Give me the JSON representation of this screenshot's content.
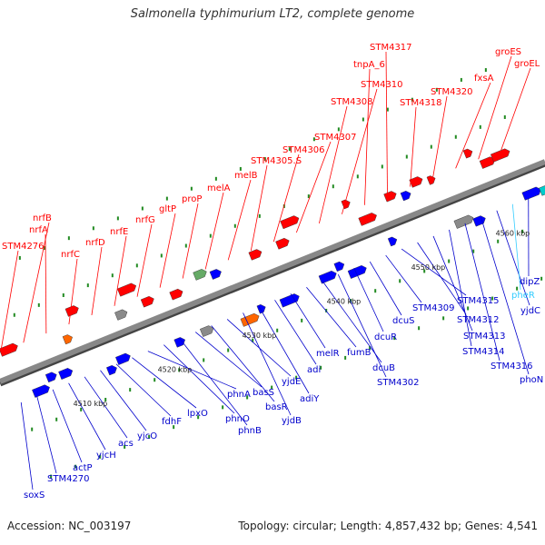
{
  "title": "Salmonella typhimurium LT2, complete genome",
  "footer": {
    "accession": "Accession: NC_003197",
    "summary": "Topology: circular; Length: 4,857,432 bp; Genes: 4,541"
  },
  "colors": {
    "forward_gene": "#ff0000",
    "reverse_gene": "#0000ff",
    "backbone": "#888888",
    "tick": "#228b22",
    "label_top": "#ff0000",
    "label_bottom": "#0000cc",
    "label_highlight": "#33ccff"
  },
  "kbp_ticks": [
    "4510 kbp",
    "4520 kbp",
    "4530 kbp",
    "4540 kbp",
    "4550 kbp",
    "4560 kbp"
  ],
  "top_labels": [
    "STM4276",
    "nrfB",
    "nrfA",
    "nrfC",
    "nrfD",
    "nrfE",
    "nrfG",
    "gltP",
    "proP",
    "melA",
    "melB",
    "STM4305.S",
    "STM4306",
    "STM4307",
    "STM4308",
    "STM4310",
    "tnpA_6",
    "STM4317",
    "STM4318",
    "STM4320",
    "fxsA",
    "groES",
    "groEL"
  ],
  "bottom_labels": [
    "soxS",
    "STM4270",
    "actP",
    "yjcH",
    "acs",
    "yjcO",
    "fdhF",
    "lpxO",
    "phnA",
    "phnO",
    "phnB",
    "basS",
    "basR",
    "yjdE",
    "yjdB",
    "adiY",
    "adi",
    "melR",
    "fumB",
    "dcuB",
    "STM4302",
    "dcuR",
    "dcuS",
    "STM4309",
    "STM4315",
    "STM4312",
    "STM4313",
    "STM4314",
    "STM4316",
    "phoN",
    "yjdC",
    "pheR",
    "dipZ"
  ]
}
